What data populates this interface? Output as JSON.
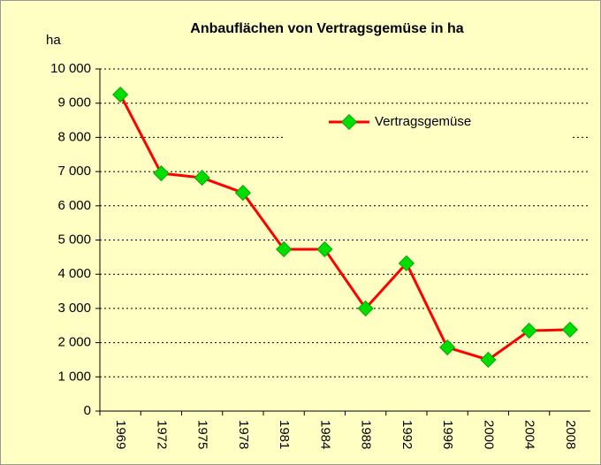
{
  "chart_data": {
    "type": "line",
    "title": "Anbauflächen von Vertragsgemüse in ha",
    "y_label": "ha",
    "categories": [
      "1969",
      "1972",
      "1975",
      "1978",
      "1981",
      "1984",
      "1988",
      "1992",
      "1996",
      "2000",
      "2004",
      "2008"
    ],
    "series": [
      {
        "name": "Vertragsgemüse",
        "color": "#ff0000",
        "marker_color": "#00dd00",
        "values": [
          9250,
          6950,
          6820,
          6380,
          4730,
          4730,
          3000,
          4320,
          1860,
          1500,
          2350,
          2380
        ]
      }
    ],
    "ylim": [
      0,
      10000
    ],
    "yticks": [
      0,
      {
        "value": 1000,
        "label": "1 000"
      },
      {
        "value": 2000,
        "label": "2 000"
      },
      {
        "value": 3000,
        "label": "3 000"
      },
      {
        "value": 4000,
        "label": "4 000"
      },
      {
        "value": 5000,
        "label": "5 000"
      },
      {
        "value": 6000,
        "label": "6 000"
      },
      {
        "value": 7000,
        "label": "7 000"
      },
      {
        "value": 8000,
        "label": "8 000"
      },
      {
        "value": 9000,
        "label": "9 000"
      },
      {
        "value": 10000,
        "label": "10 000"
      }
    ],
    "grid": true,
    "legend": "upper right"
  }
}
